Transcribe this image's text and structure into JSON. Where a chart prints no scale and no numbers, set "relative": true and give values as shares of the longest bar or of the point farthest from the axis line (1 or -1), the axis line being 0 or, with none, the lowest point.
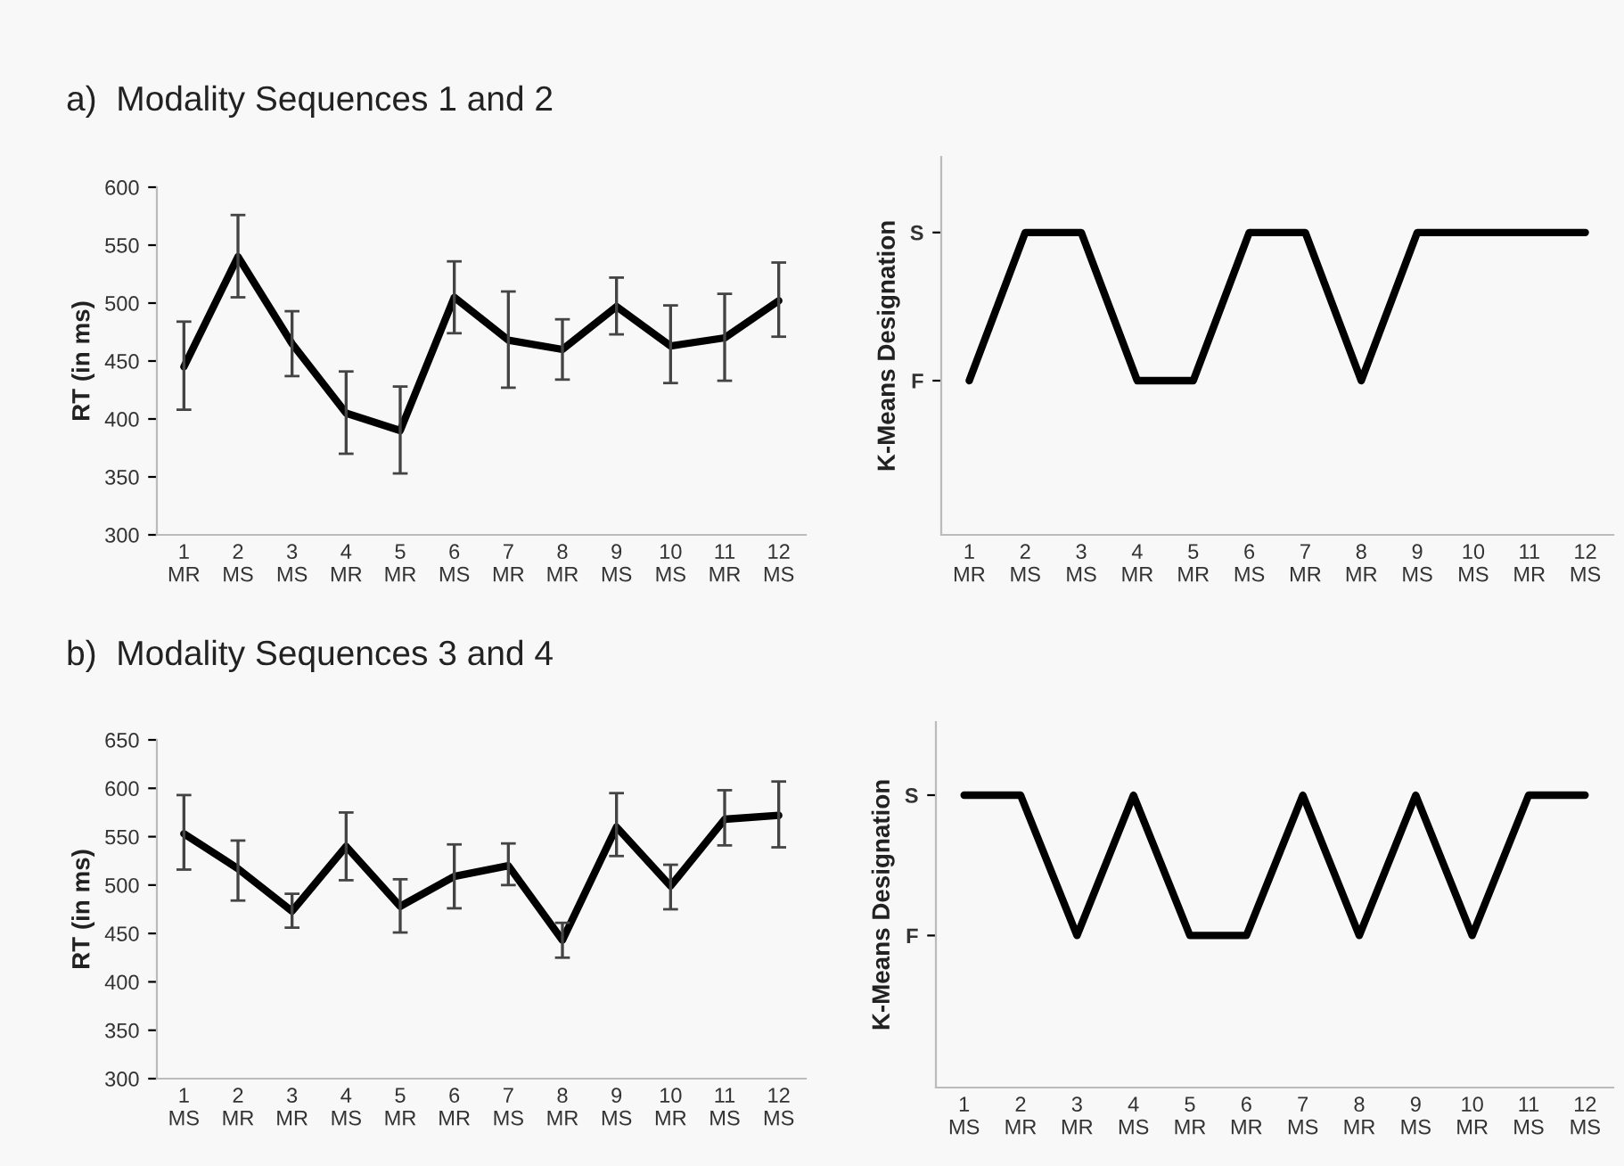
{
  "chart_data": [
    {
      "type": "line",
      "title": "a)  Modality Sequences 1 and 2",
      "ylabel": "RT (in ms)",
      "categories": [
        "1\nMR",
        "2\nMS",
        "3\nMS",
        "4\nMR",
        "5\nMR",
        "6\nMS",
        "7\nMR",
        "8\nMR",
        "9\nMS",
        "10\nMS",
        "11\nMR",
        "12\nMS"
      ],
      "series": [
        {
          "color": "#000000",
          "values": [
            445,
            540,
            465,
            405,
            390,
            505,
            468,
            460,
            497,
            463,
            470,
            502
          ],
          "errors": [
            [
              408,
              484
            ],
            [
              505,
              576
            ],
            [
              437,
              493
            ],
            [
              370,
              441
            ],
            [
              353,
              428
            ],
            [
              474,
              536
            ],
            [
              427,
              510
            ],
            [
              434,
              486
            ],
            [
              473,
              522
            ],
            [
              431,
              498
            ],
            [
              433,
              508
            ],
            [
              471,
              535
            ]
          ]
        }
      ],
      "ylim": [
        300,
        600
      ],
      "yticks": [
        300,
        350,
        400,
        450,
        500,
        550,
        600
      ],
      "grid": false,
      "marker": "none",
      "line_style": "solid"
    },
    {
      "type": "line",
      "ylabel": "K-Means Designation",
      "categories": [
        "1\nMR",
        "2\nMS",
        "3\nMS",
        "4\nMR",
        "5\nMR",
        "6\nMS",
        "7\nMR",
        "8\nMR",
        "9\nMS",
        "10\nMS",
        "11\nMR",
        "12\nMS"
      ],
      "series": [
        {
          "color": "#000000",
          "values": [
            0.51,
            1,
            1,
            0.51,
            0.51,
            1,
            1,
            0.51,
            1,
            1,
            1,
            1
          ]
        }
      ],
      "relative": true,
      "annotations": [
        "S",
        "F"
      ],
      "grid": false,
      "marker": "none",
      "line_style": "solid"
    },
    {
      "type": "line",
      "title": "b)  Modality Sequences 3 and 4",
      "ylabel": "RT (in ms)",
      "categories": [
        "1\nMS",
        "2\nMR",
        "3\nMR",
        "4\nMS",
        "5\nMR",
        "6\nMR",
        "7\nMS",
        "8\nMR",
        "9\nMS",
        "10\nMR",
        "11\nMS",
        "12\nMS"
      ],
      "series": [
        {
          "color": "#000000",
          "values": [
            553,
            517,
            473,
            540,
            478,
            509,
            520,
            443,
            560,
            499,
            568,
            572
          ],
          "errors": [
            [
              516,
              593
            ],
            [
              484,
              546
            ],
            [
              456,
              491
            ],
            [
              505,
              575
            ],
            [
              451,
              506
            ],
            [
              476,
              542
            ],
            [
              500,
              543
            ],
            [
              425,
              461
            ],
            [
              530,
              595
            ],
            [
              475,
              521
            ],
            [
              541,
              598
            ],
            [
              539,
              607
            ]
          ]
        }
      ],
      "ylim": [
        300,
        650
      ],
      "yticks": [
        300,
        350,
        400,
        450,
        500,
        550,
        600,
        650
      ],
      "grid": false,
      "marker": "none",
      "line_style": "solid"
    },
    {
      "type": "line",
      "ylabel": "K-Means Designation",
      "categories": [
        "1\nMS",
        "2\nMR",
        "3\nMR",
        "4\nMS",
        "5\nMR",
        "6\nMR",
        "7\nMS",
        "8\nMR",
        "9\nMS",
        "10\nMR",
        "11\nMS",
        "12\nMS"
      ],
      "series": [
        {
          "color": "#000000",
          "values": [
            1,
            1,
            0.52,
            1,
            0.52,
            0.52,
            1,
            0.52,
            1,
            0.52,
            1,
            1
          ]
        }
      ],
      "relative": true,
      "annotations": [
        "S",
        "F"
      ],
      "grid": false,
      "marker": "none",
      "line_style": "solid"
    }
  ]
}
